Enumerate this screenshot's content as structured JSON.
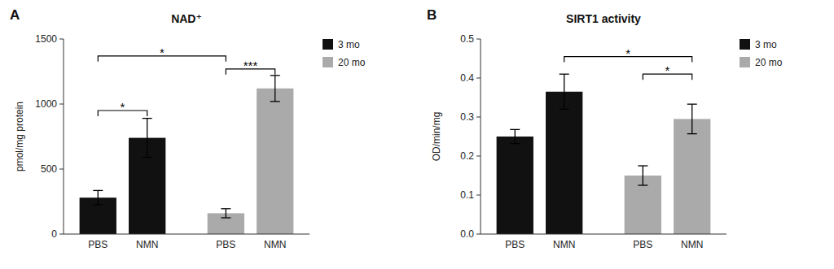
{
  "chart_data": [
    {
      "type": "bar",
      "title": "NAD⁺",
      "panel_label": "A",
      "y_label": "pmol/mg protein",
      "categories": [
        "PBS",
        "NMN",
        "PBS",
        "NMN"
      ],
      "series": [
        {
          "name": "3 mo",
          "color": "#111111",
          "values": [
            280,
            740,
            null,
            null
          ],
          "errors": [
            55,
            150,
            null,
            null
          ]
        },
        {
          "name": "20 mo",
          "color": "#aaaaaa",
          "values": [
            null,
            null,
            160,
            1120
          ],
          "errors": [
            null,
            null,
            35,
            100
          ]
        }
      ],
      "ylim": [
        0,
        1500
      ],
      "yticks": [
        0,
        500,
        1000,
        1500
      ],
      "grid": false,
      "legend": "right",
      "annotations": [
        {
          "text": "*",
          "from": 0,
          "to": 1,
          "y": 950
        },
        {
          "text": "*",
          "from": 0,
          "to": 2,
          "y": 1370
        },
        {
          "text": "***",
          "from": 2,
          "to": 3,
          "y": 1270
        }
      ]
    },
    {
      "type": "bar",
      "title": "SIRT1 activity",
      "panel_label": "B",
      "y_label": "OD/min/mg",
      "categories": [
        "PBS",
        "NMN",
        "PBS",
        "NMN"
      ],
      "series": [
        {
          "name": "3 mo",
          "color": "#111111",
          "values": [
            0.25,
            0.365,
            null,
            null
          ],
          "errors": [
            0.018,
            0.045,
            null,
            null
          ]
        },
        {
          "name": "20 mo",
          "color": "#aaaaaa",
          "values": [
            null,
            null,
            0.15,
            0.295
          ],
          "errors": [
            null,
            null,
            0.025,
            0.038
          ]
        }
      ],
      "ylim": [
        0,
        0.5
      ],
      "yticks": [
        {
          "value": 0,
          "label": "0.0"
        },
        0.1,
        0.2,
        0.3,
        0.4,
        0.5
      ],
      "grid": false,
      "legend": "right",
      "annotations": [
        {
          "text": "*",
          "from": 1,
          "to": 3,
          "y": 0.455
        },
        {
          "text": "*",
          "from": 2,
          "to": 3,
          "y": 0.41
        }
      ]
    }
  ]
}
